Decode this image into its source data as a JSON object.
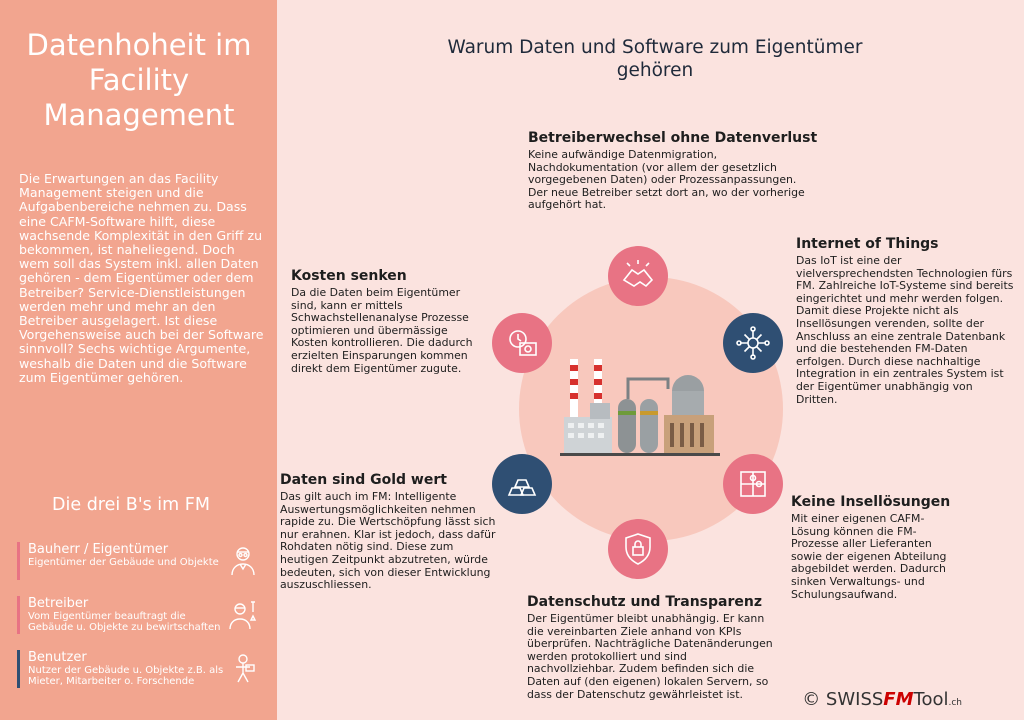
{
  "sidebar": {
    "title": "Datenhoheit im Facility Management",
    "intro": "Die Erwartungen an das Facility Management steigen und die Aufgabenbereiche nehmen zu. Dass eine CAFM-Software hilft, diese wachsende Komplexität in den Griff zu bekommen, ist naheliegend. Doch wem soll das System inkl. allen Daten gehören - dem Eigentümer oder dem Betreiber? Service-Dienstleistungen werden mehr und mehr an den Betreiber ausgelagert. Ist diese Vorgehensweise auch bei der Software sinnvoll? Sechs wichtige Argumente, weshalb die Daten und die Software zum Eigentümer gehören.",
    "subtitle": "Die drei B's im FM",
    "roles": [
      {
        "name": "Bauherr / Eigentümer",
        "desc": "Eigentümer der Gebäude und Objekte",
        "color": "#e87384",
        "icon": "architect-icon"
      },
      {
        "name": "Betreiber",
        "desc": "Vom Eigentümer beauftragt die Gebäude u. Objekte zu bewirtschaften",
        "color": "#e87384",
        "icon": "technician-icon"
      },
      {
        "name": "Benutzer",
        "desc": "Nutzer der Gebäude u. Objekte z.B. als Mieter, Mitarbeiter o. Forschende",
        "color": "#2f4f73",
        "icon": "user-icon"
      }
    ]
  },
  "main": {
    "title": "Warum Daten und Software zum Eigentümer gehören",
    "blocks": {
      "betreiberwechsel": {
        "heading": "Betreiberwechsel ohne Datenverlust",
        "text": "Keine aufwändige Datenmigration, Nachdokumentation (vor allem der gesetzlich vorgegebenen Daten) oder Prozessanpassungen. Der neue Betreiber setzt dort an, wo der vorherige aufgehört hat."
      },
      "iot": {
        "heading": "Internet of Things",
        "text": "Das IoT ist eine der vielversprechendsten Technologien fürs FM. Zahlreiche IoT-Systeme sind bereits eingerichtet und mehr werden folgen. Damit diese Projekte nicht als Insellösungen verenden, sollte der Anschluss an eine zentrale Datenbank und die bestehenden FM-Daten erfolgen. Durch diese nachhaltige Integration in ein zentrales System ist der Eigentümer unabhängig von Dritten."
      },
      "kosten": {
        "heading": "Kosten senken",
        "text": "Da die Daten beim Eigentümer sind, kann er mittels Schwachstellenanalyse Prozesse optimieren und übermässige Kosten kontrollieren. Die dadurch erzielten Einsparungen kommen direkt dem Eigentümer zugute."
      },
      "gold": {
        "heading": "Daten sind Gold wert",
        "text": "Das gilt auch im FM: Intelligente Auswertungsmöglichkeiten nehmen rapide zu. Die Wertschöpfung lässt sich nur erahnen. Klar ist jedoch, dass dafür Rohdaten nötig sind. Diese zum heutigen Zeitpunkt abzutreten, würde bedeuten, sich von dieser Entwicklung auszuschliessen."
      },
      "insel": {
        "heading": "Keine Insellösungen",
        "text": "Mit einer eigenen CAFM-Lösung können die FM-Prozesse aller Lieferanten sowie der eigenen Abteilung abgebildet werden. Dadurch sinken Verwaltungs- und Schulungsaufwand."
      },
      "datenschutz": {
        "heading": "Datenschutz und Transparenz",
        "text": "Der Eigentümer bleibt unabhängig. Er kann die vereinbarten Ziele anhand von KPIs überprüfen. Nachträgliche Datenänderungen werden protokolliert und sind nachvollziehbar. Zudem befinden sich die Daten auf (den eigenen) lokalen Servern, so dass der Datenschutz gewährleistet ist."
      }
    }
  },
  "credit": {
    "prefix": "© SWISS",
    "fm": "FM",
    "tool": "Tool",
    "tld": ".ch"
  },
  "colors": {
    "sidebar": "#f2a58f",
    "background": "#fbe3df",
    "pink": "#e87384",
    "navy": "#2f4f73",
    "ring": "#f8c8bd"
  }
}
